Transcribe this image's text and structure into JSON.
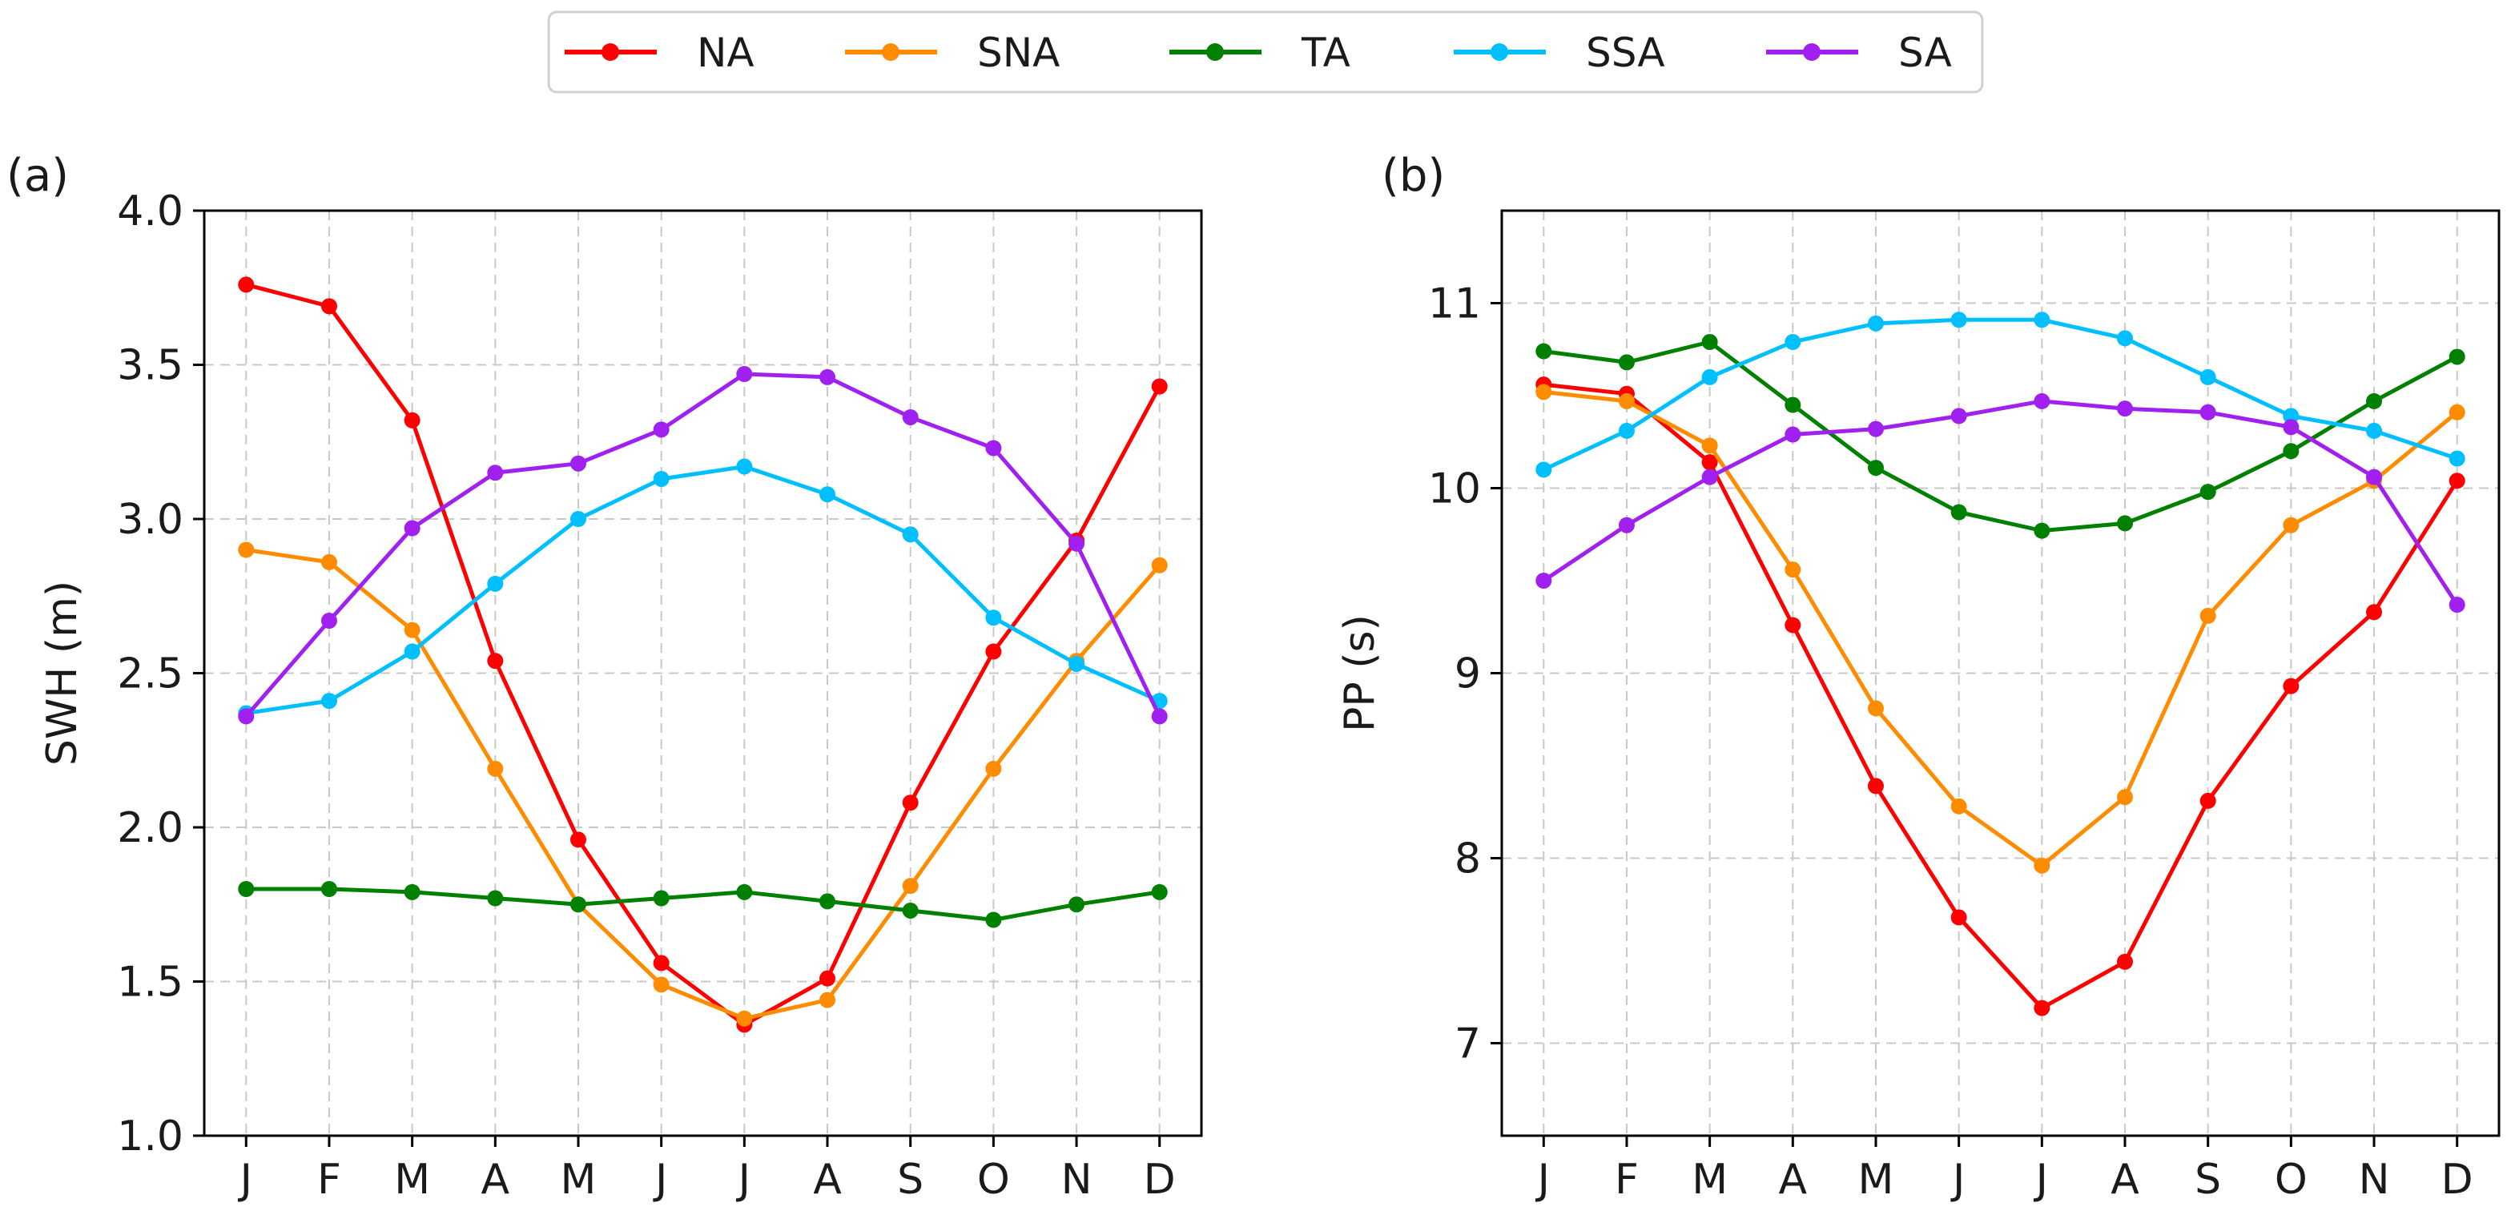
{
  "legend": {
    "entries": [
      {
        "key": "NA",
        "label": "NA",
        "color": "#ff0000"
      },
      {
        "key": "SNA",
        "label": "SNA",
        "color": "#ff8c00"
      },
      {
        "key": "TA",
        "label": "TA",
        "color": "#008000"
      },
      {
        "key": "SSA",
        "label": "SSA",
        "color": "#00bfff"
      },
      {
        "key": "SA",
        "label": "SA",
        "color": "#a020f0"
      }
    ]
  },
  "chart_data": [
    {
      "type": "line",
      "panel_label": "(a)",
      "xlabel": "",
      "ylabel": "SWH (m)",
      "categories": [
        "J",
        "F",
        "M",
        "A",
        "M",
        "J",
        "J",
        "A",
        "S",
        "O",
        "N",
        "D"
      ],
      "ylim": [
        1.0,
        4.0
      ],
      "yticks": [
        1.0,
        1.5,
        2.0,
        2.5,
        3.0,
        3.5,
        4.0
      ],
      "ytick_labels": [
        "1.0",
        "1.5",
        "2.0",
        "2.5",
        "3.0",
        "3.5",
        "4.0"
      ],
      "grid": true,
      "series": [
        {
          "name": "NA",
          "color": "#ff0000",
          "values": [
            3.76,
            3.69,
            3.32,
            2.54,
            1.96,
            1.56,
            1.36,
            1.51,
            2.08,
            2.57,
            2.93,
            3.43
          ]
        },
        {
          "name": "SNA",
          "color": "#ff8c00",
          "values": [
            2.9,
            2.86,
            2.64,
            2.19,
            1.75,
            1.49,
            1.38,
            1.44,
            1.81,
            2.19,
            2.54,
            2.85
          ]
        },
        {
          "name": "TA",
          "color": "#008000",
          "values": [
            1.8,
            1.8,
            1.79,
            1.77,
            1.75,
            1.77,
            1.79,
            1.76,
            1.73,
            1.7,
            1.75,
            1.79
          ]
        },
        {
          "name": "SSA",
          "color": "#00bfff",
          "values": [
            2.37,
            2.41,
            2.57,
            2.79,
            3.0,
            3.13,
            3.17,
            3.08,
            2.95,
            2.68,
            2.53,
            2.41
          ]
        },
        {
          "name": "SA",
          "color": "#a020f0",
          "values": [
            2.36,
            2.67,
            2.97,
            3.15,
            3.18,
            3.29,
            3.47,
            3.46,
            3.33,
            3.23,
            2.92,
            2.36
          ]
        }
      ]
    },
    {
      "type": "line",
      "panel_label": "(b)",
      "xlabel": "",
      "ylabel": "PP (s)",
      "categories": [
        "J",
        "F",
        "M",
        "A",
        "M",
        "J",
        "J",
        "A",
        "S",
        "O",
        "N",
        "D"
      ],
      "ylim": [
        6.5,
        11.5
      ],
      "yticks": [
        7,
        8,
        9,
        10,
        11
      ],
      "ytick_labels": [
        "7",
        "8",
        "9",
        "10",
        "11"
      ],
      "grid": true,
      "series": [
        {
          "name": "NA",
          "color": "#ff0000",
          "values": [
            10.56,
            10.51,
            10.14,
            9.26,
            8.39,
            7.68,
            7.19,
            7.44,
            8.31,
            8.93,
            9.33,
            10.04
          ]
        },
        {
          "name": "SNA",
          "color": "#ff8c00",
          "values": [
            10.52,
            10.47,
            10.23,
            9.56,
            8.81,
            8.28,
            7.96,
            8.33,
            9.31,
            9.8,
            10.04,
            10.41
          ]
        },
        {
          "name": "TA",
          "color": "#008000",
          "values": [
            10.74,
            10.68,
            10.79,
            10.45,
            10.11,
            9.87,
            9.77,
            9.81,
            9.98,
            10.2,
            10.47,
            10.71
          ]
        },
        {
          "name": "SSA",
          "color": "#00bfff",
          "values": [
            10.1,
            10.31,
            10.6,
            10.79,
            10.89,
            10.91,
            10.91,
            10.81,
            10.6,
            10.39,
            10.31,
            10.16
          ]
        },
        {
          "name": "SA",
          "color": "#a020f0",
          "values": [
            9.5,
            9.8,
            10.06,
            10.29,
            10.32,
            10.39,
            10.47,
            10.43,
            10.41,
            10.33,
            10.06,
            9.37
          ]
        }
      ]
    }
  ]
}
